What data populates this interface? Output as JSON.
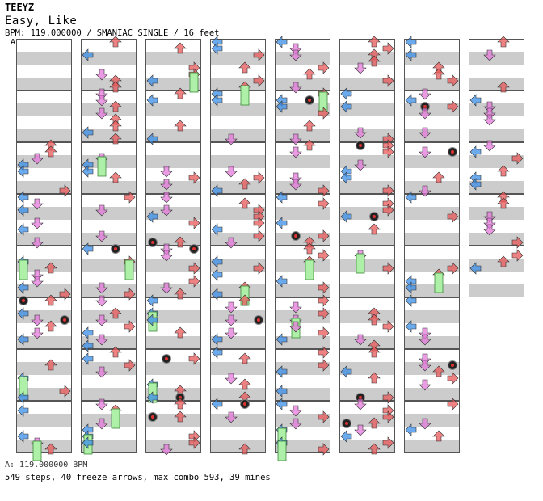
{
  "song": {
    "artist": "TEEYZ",
    "title": "Easy, Like",
    "meta_line": "BPM: 119.000000 / SMANIAC SINGLE / 16 feet",
    "section_marker": "A"
  },
  "chart": {
    "columns": 8,
    "measures_per_column": 8,
    "total_measures": 61,
    "lanes": [
      "left",
      "down",
      "up",
      "right"
    ],
    "arrow_colors": {
      "left": "#3b8ee8",
      "down": "#e37ad9",
      "up": "#e8585a",
      "right": "#e8585a",
      "freeze": "#aef0a7",
      "mine": "#222222"
    }
  },
  "footer": {
    "bpm_line": "A: 119.000000 BPM",
    "stats_line": "549 steps, 40 freeze arrows, max combo 593, 39 mines"
  }
}
